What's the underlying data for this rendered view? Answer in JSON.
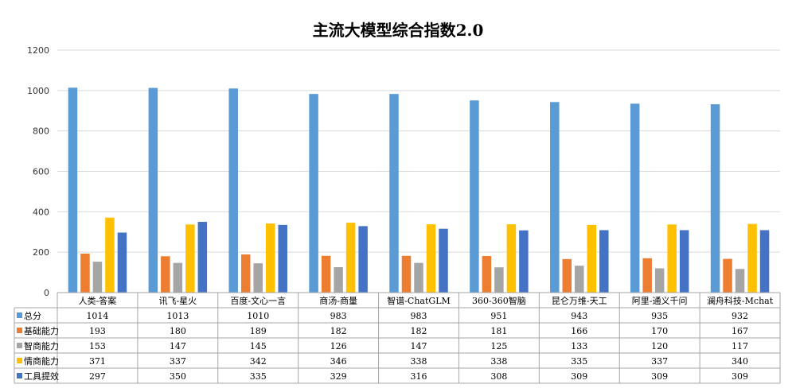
{
  "chart_data": {
    "type": "bar",
    "title": "主流大模型综合指数2.0",
    "ylim": [
      0,
      1200
    ],
    "yticks": [
      0,
      200,
      400,
      600,
      800,
      1000,
      1200
    ],
    "grid": true,
    "legend": "data-table",
    "categories": [
      "人类-答案",
      "讯飞-星火",
      "百度-文心一言",
      "商汤-商量",
      "智谱-ChatGLM",
      "360-360智脑",
      "昆仑万维-天工",
      "阿里-通义千问",
      "澜舟科技-Mchat"
    ],
    "series": [
      {
        "name": "总分",
        "color": "#5B9BD5",
        "values": [
          1014,
          1013,
          1010,
          983,
          983,
          951,
          943,
          935,
          932
        ]
      },
      {
        "name": "基础能力",
        "color": "#ED7D31",
        "values": [
          193,
          180,
          189,
          182,
          182,
          181,
          166,
          170,
          167
        ]
      },
      {
        "name": "智商能力",
        "color": "#A5A5A5",
        "values": [
          153,
          147,
          145,
          126,
          147,
          125,
          133,
          120,
          117
        ]
      },
      {
        "name": "情商能力",
        "color": "#FFC000",
        "values": [
          371,
          337,
          342,
          346,
          338,
          338,
          335,
          337,
          340
        ]
      },
      {
        "name": "工具提效",
        "color": "#4472C4",
        "values": [
          297,
          350,
          335,
          329,
          316,
          308,
          309,
          309,
          309
        ]
      }
    ]
  }
}
